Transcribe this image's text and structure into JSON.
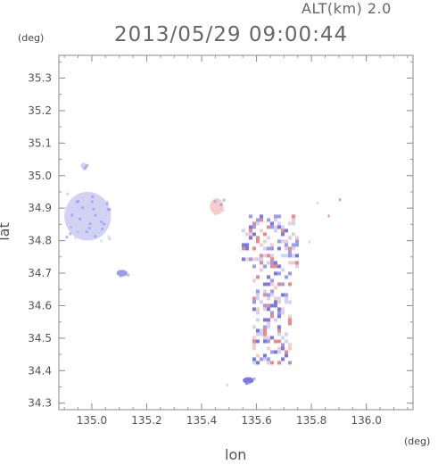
{
  "header": {
    "altitude_label": "ALT(km) 2.0",
    "timestamp": "2013/05/29 09:00:44"
  },
  "chart_data": {
    "type": "heatmap",
    "title": "2013/05/29 09:00:44",
    "xlabel": "lon",
    "ylabel": "lat",
    "x_unit": "(deg)",
    "y_unit": "(deg)",
    "xlim": [
      134.88,
      136.17
    ],
    "ylim": [
      34.28,
      35.37
    ],
    "x_ticks": [
      "135.0",
      "135.2",
      "135.4",
      "135.6",
      "135.8",
      "136.0"
    ],
    "x_tick_values": [
      135.0,
      135.2,
      135.4,
      135.6,
      135.8,
      136.0
    ],
    "y_ticks": [
      "34.3",
      "34.4",
      "34.5",
      "34.6",
      "34.7",
      "34.8",
      "34.9",
      "35.0",
      "35.1",
      "35.2",
      "35.3"
    ],
    "y_tick_values": [
      34.3,
      34.4,
      34.5,
      34.6,
      34.7,
      34.8,
      34.9,
      35.0,
      35.1,
      35.2,
      35.3
    ],
    "grid": false,
    "colors": {
      "light_blue": "#d2d2f5",
      "mid_blue": "#9b9bea",
      "blue": "#7878e0",
      "light_red": "#f5cccc",
      "red": "#e88a8a"
    },
    "regions": [
      {
        "lon": [
          134.9,
          135.07
        ],
        "lat": [
          34.8,
          34.95
        ],
        "color": "light_blue"
      },
      {
        "lon": [
          134.96,
          134.98
        ],
        "lat": [
          35.02,
          35.04
        ],
        "color": "light_blue"
      },
      {
        "lon": [
          135.09,
          135.13
        ],
        "lat": [
          34.69,
          34.71
        ],
        "color": "mid_blue"
      },
      {
        "lon": [
          135.43,
          135.48
        ],
        "lat": [
          34.88,
          34.93
        ],
        "color": "light_red"
      },
      {
        "lon": [
          135.52,
          135.75
        ],
        "lat": [
          34.42,
          34.88
        ],
        "color": "mixed"
      },
      {
        "lon": [
          135.55,
          135.59
        ],
        "lat": [
          34.36,
          34.38
        ],
        "color": "blue"
      }
    ]
  }
}
